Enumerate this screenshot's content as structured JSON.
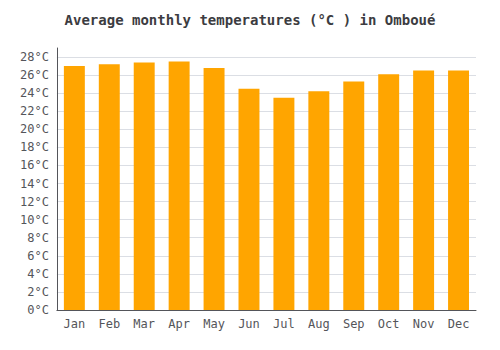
{
  "chart_data": {
    "type": "bar",
    "title": "Average monthly temperatures (°C ) in Omboué",
    "categories": [
      "Jan",
      "Feb",
      "Mar",
      "Apr",
      "May",
      "Jun",
      "Jul",
      "Aug",
      "Sep",
      "Oct",
      "Nov",
      "Dec"
    ],
    "values": [
      27.0,
      27.2,
      27.4,
      27.5,
      26.8,
      24.5,
      23.5,
      24.2,
      25.3,
      26.1,
      26.5,
      26.5
    ],
    "color": "#FFA500",
    "ylim": [
      0,
      29
    ],
    "yticks": [
      {
        "value": 0,
        "label": "0°C"
      },
      {
        "value": 2,
        "label": "2°C"
      },
      {
        "value": 4,
        "label": "4°C"
      },
      {
        "value": 6,
        "label": "6°C"
      },
      {
        "value": 8,
        "label": "8°C"
      },
      {
        "value": 10,
        "label": "10°C"
      },
      {
        "value": 12,
        "label": "12°C"
      },
      {
        "value": 14,
        "label": "14°C"
      },
      {
        "value": 16,
        "label": "16°C"
      },
      {
        "value": 18,
        "label": "18°C"
      },
      {
        "value": 20,
        "label": "20°C"
      },
      {
        "value": 22,
        "label": "22°C"
      },
      {
        "value": 24,
        "label": "24°C"
      },
      {
        "value": 26,
        "label": "26°C"
      },
      {
        "value": 28,
        "label": "28°C"
      }
    ],
    "grid": true
  }
}
